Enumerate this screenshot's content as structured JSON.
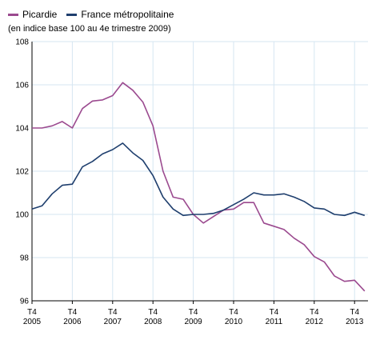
{
  "chart_data": {
    "type": "line",
    "subtitle": "(en indice base 100 au 4e trimestre 2009)",
    "legend_position": "top-left",
    "grid": true,
    "grid_color": "#d6e6f2",
    "ylim": [
      96,
      108
    ],
    "y_ticks": [
      "96",
      "98",
      "100",
      "102",
      "104",
      "106",
      "108"
    ],
    "x_ticks": [
      {
        "line1": "T4",
        "line2": "2005"
      },
      {
        "line1": "T4",
        "line2": "2006"
      },
      {
        "line1": "T4",
        "line2": "2007"
      },
      {
        "line1": "T4",
        "line2": "2008"
      },
      {
        "line1": "T4",
        "line2": "2009"
      },
      {
        "line1": "T4",
        "line2": "2010"
      },
      {
        "line1": "T4",
        "line2": "2011"
      },
      {
        "line1": "T4",
        "line2": "2012"
      },
      {
        "line1": "T4",
        "line2": "2013"
      }
    ],
    "x": [
      "2005-T4",
      "2006-T1",
      "2006-T2",
      "2006-T3",
      "2006-T4",
      "2007-T1",
      "2007-T2",
      "2007-T3",
      "2007-T4",
      "2008-T1",
      "2008-T2",
      "2008-T3",
      "2008-T4",
      "2009-T1",
      "2009-T2",
      "2009-T3",
      "2009-T4",
      "2010-T1",
      "2010-T2",
      "2010-T3",
      "2010-T4",
      "2011-T1",
      "2011-T2",
      "2011-T3",
      "2011-T4",
      "2012-T1",
      "2012-T2",
      "2012-T3",
      "2012-T4",
      "2013-T1",
      "2013-T2",
      "2013-T3",
      "2013-T4",
      "2014-T1"
    ],
    "series": [
      {
        "name": "Picardie",
        "color": "#9b4a8f",
        "values": [
          104.0,
          104.0,
          104.1,
          104.3,
          104.0,
          104.9,
          105.25,
          105.3,
          105.5,
          106.1,
          105.75,
          105.2,
          104.1,
          102.0,
          100.8,
          100.7,
          100.0,
          99.6,
          99.9,
          100.2,
          100.25,
          100.55,
          100.55,
          99.6,
          99.45,
          99.3,
          98.9,
          98.6,
          98.05,
          97.8,
          97.15,
          96.9,
          96.95,
          96.45
        ]
      },
      {
        "name": "France métropolitaine",
        "color": "#1f3f6e",
        "values": [
          100.25,
          100.4,
          100.95,
          101.35,
          101.4,
          102.2,
          102.45,
          102.8,
          103.0,
          103.3,
          102.85,
          102.5,
          101.8,
          100.8,
          100.25,
          99.95,
          100.0,
          100.0,
          100.05,
          100.2,
          100.45,
          100.7,
          101.0,
          100.9,
          100.9,
          100.95,
          100.8,
          100.6,
          100.3,
          100.25,
          100.0,
          99.95,
          100.1,
          99.95
        ]
      }
    ]
  }
}
